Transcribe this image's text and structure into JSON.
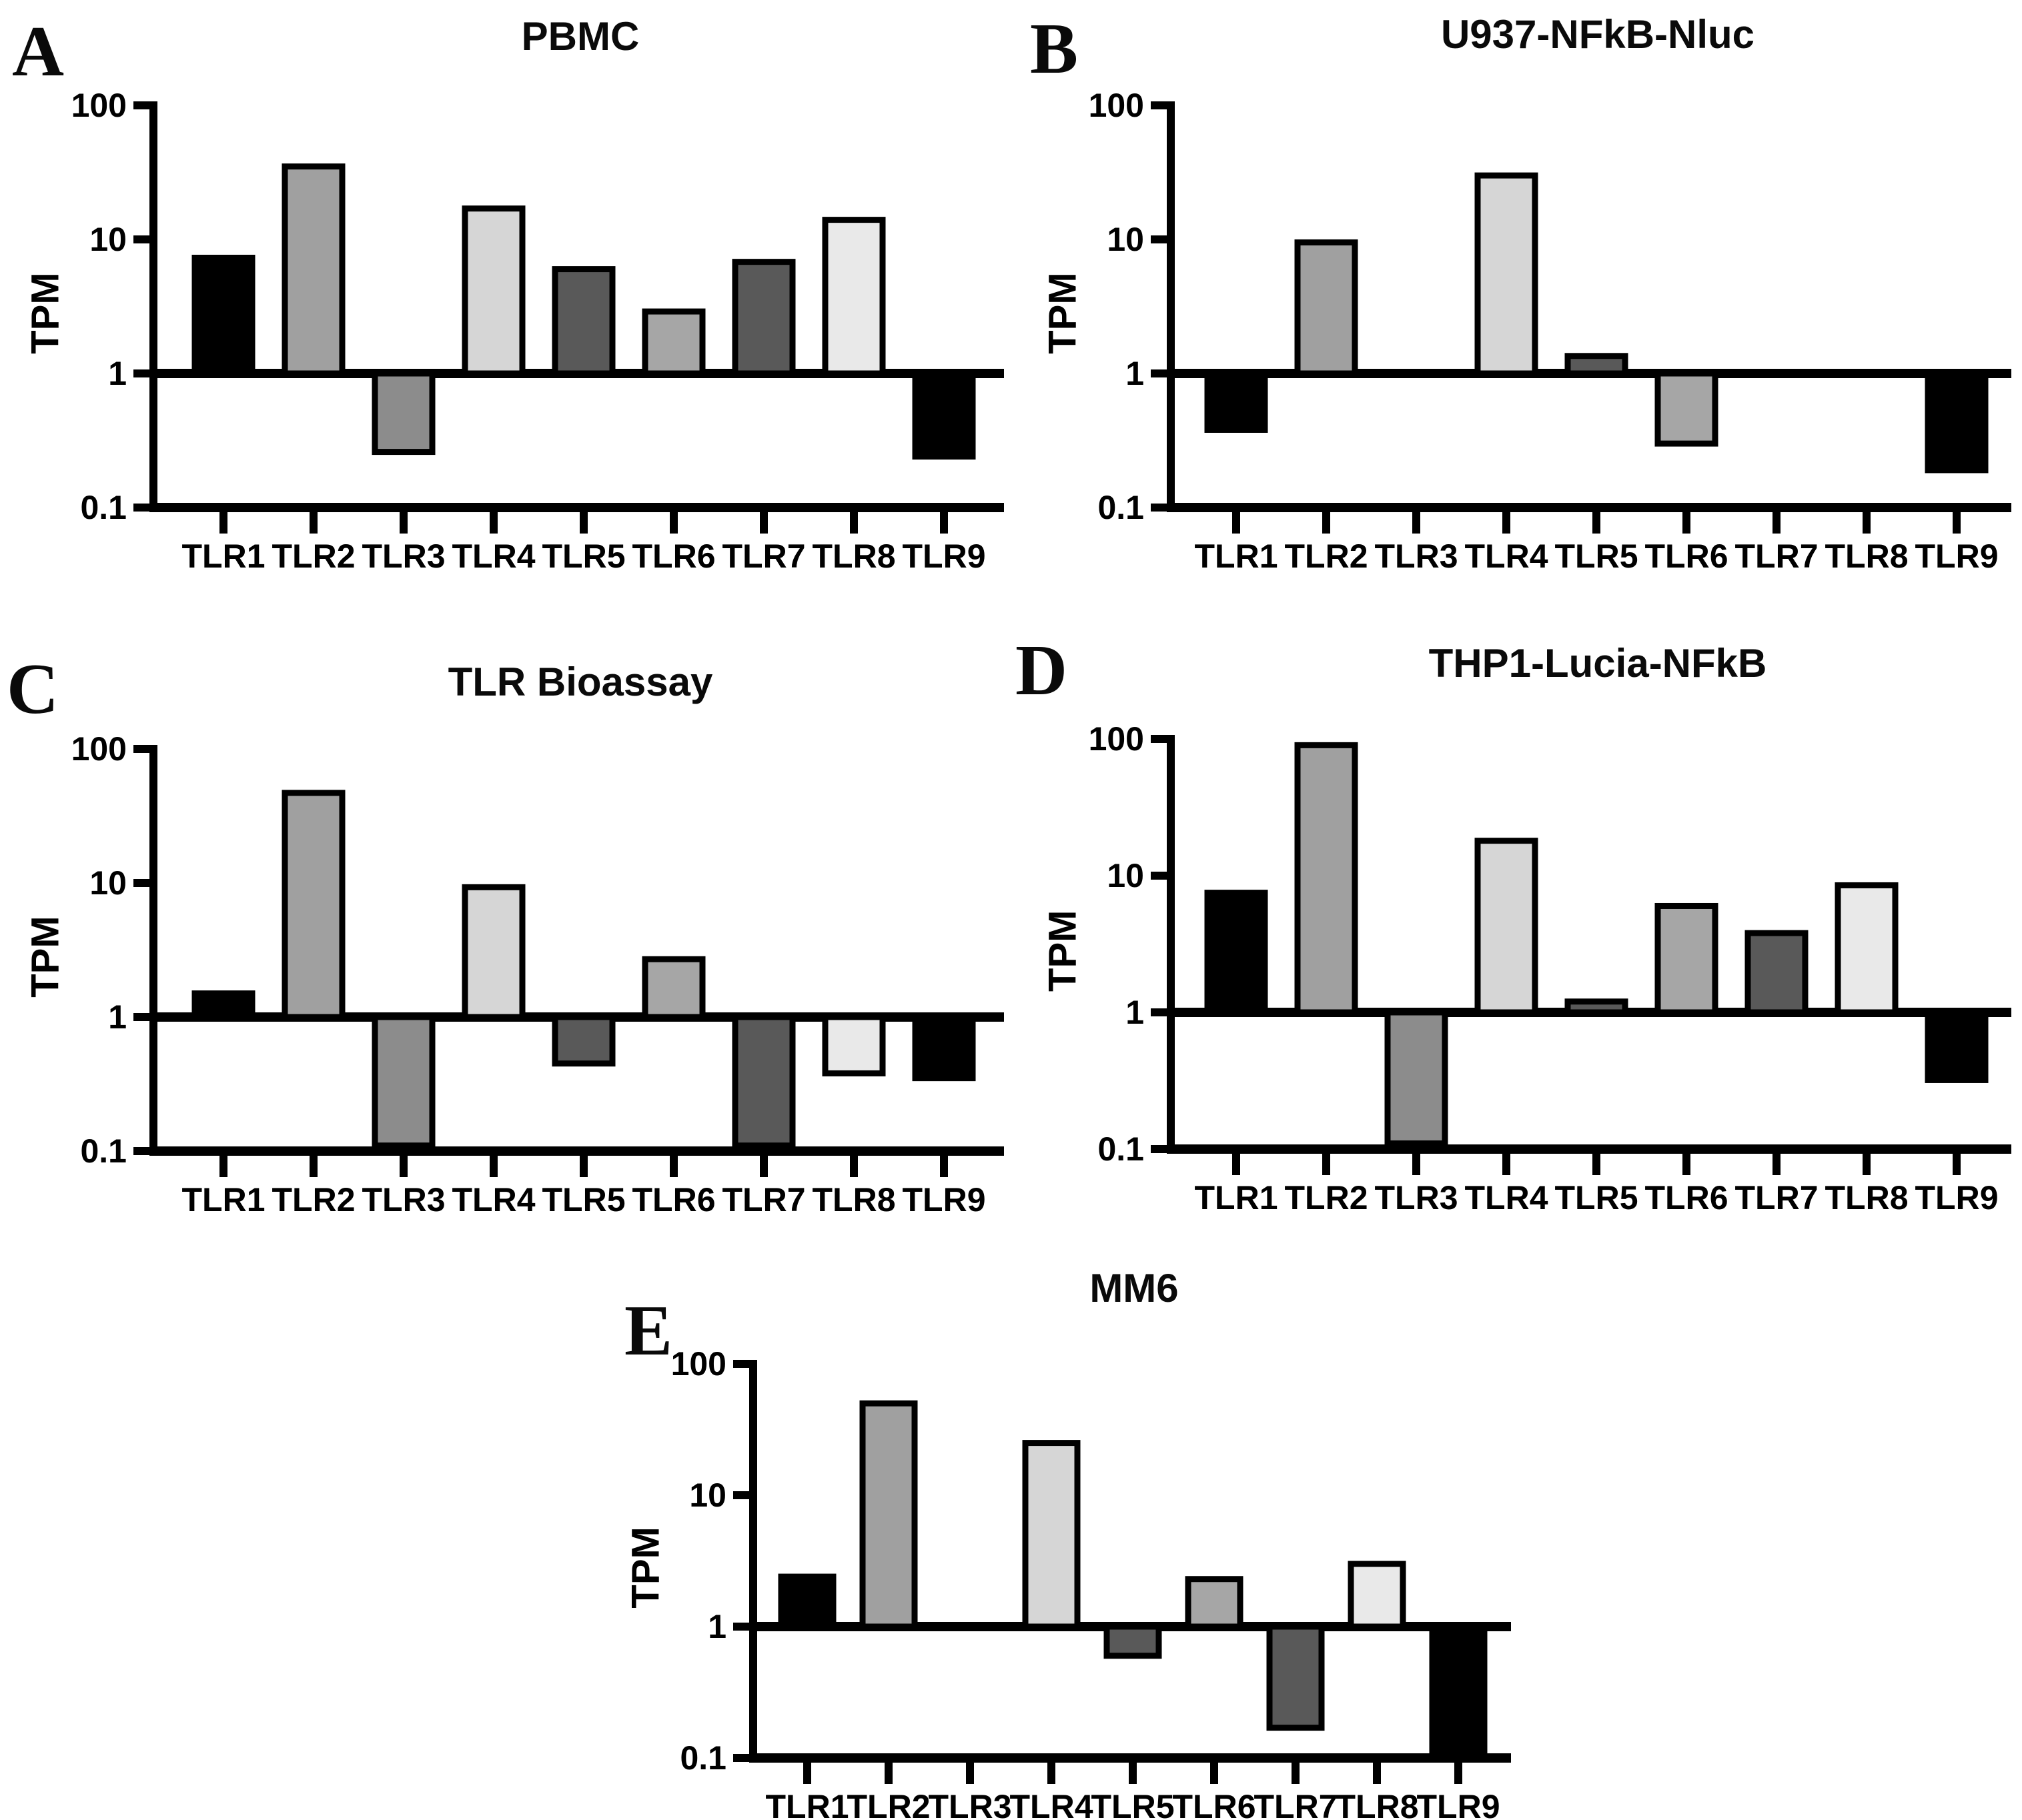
{
  "figure": {
    "ylabel": "TPM",
    "categories": [
      "TLR1",
      "TLR2",
      "TLR3",
      "TLR4",
      "TLR5",
      "TLR6",
      "TLR7",
      "TLR8",
      "TLR9"
    ],
    "axis_color": "#000000",
    "background_color": "#ffffff",
    "bar_colors": [
      "#000000",
      "#a0a0a0",
      "#8c8c8c",
      "#d6d6d6",
      "#595959",
      "#a6a6a6",
      "#595959",
      "#e9e9e9",
      "#000000"
    ]
  },
  "chart_data": [
    {
      "type": "bar",
      "panel_letter": "A",
      "title": "PBMC",
      "ylabel": "TPM",
      "yscale": "log",
      "ylim": [
        0.1,
        100
      ],
      "baseline": 1,
      "yticks": [
        "100",
        "10",
        "1",
        "0.1"
      ],
      "legend": "none",
      "grid": false,
      "categories": [
        "TLR1",
        "TLR2",
        "TLR3",
        "TLR4",
        "TLR5",
        "TLR6",
        "TLR7",
        "TLR8",
        "TLR9"
      ],
      "values": [
        7.3,
        35,
        0.26,
        17,
        6.0,
        2.9,
        6.8,
        14,
        0.24
      ],
      "bar_colors": [
        "#000000",
        "#a0a0a0",
        "#8c8c8c",
        "#d6d6d6",
        "#595959",
        "#a6a6a6",
        "#595959",
        "#e9e9e9",
        "#000000"
      ]
    },
    {
      "type": "bar",
      "panel_letter": "B",
      "title": "U937-NFkB-Nluc",
      "ylabel": "TPM",
      "yscale": "log",
      "ylim": [
        0.1,
        100
      ],
      "baseline": 1,
      "yticks": [
        "100",
        "10",
        "1",
        "0.1"
      ],
      "legend": "none",
      "grid": false,
      "categories": [
        "TLR1",
        "TLR2",
        "TLR3",
        "TLR4",
        "TLR5",
        "TLR6",
        "TLR7",
        "TLR8",
        "TLR9"
      ],
      "values": [
        0.38,
        9.5,
        null,
        30,
        1.35,
        0.3,
        null,
        null,
        0.19
      ],
      "bar_colors": [
        "#000000",
        "#a0a0a0",
        "#8c8c8c",
        "#d6d6d6",
        "#595959",
        "#a6a6a6",
        "#595959",
        "#e9e9e9",
        "#000000"
      ]
    },
    {
      "type": "bar",
      "panel_letter": "C",
      "title": "TLR Bioassay",
      "ylabel": "TPM",
      "yscale": "log",
      "ylim": [
        0.1,
        100
      ],
      "baseline": 1,
      "yticks": [
        "100",
        "10",
        "1",
        "0.1"
      ],
      "legend": "none",
      "grid": false,
      "categories": [
        "TLR1",
        "TLR2",
        "TLR3",
        "TLR4",
        "TLR5",
        "TLR6",
        "TLR7",
        "TLR8",
        "TLR9"
      ],
      "values": [
        1.5,
        47,
        0.11,
        9.3,
        0.45,
        2.7,
        0.11,
        0.38,
        0.35
      ],
      "bar_colors": [
        "#000000",
        "#a0a0a0",
        "#8c8c8c",
        "#d6d6d6",
        "#595959",
        "#a6a6a6",
        "#595959",
        "#e9e9e9",
        "#000000"
      ]
    },
    {
      "type": "bar",
      "panel_letter": "D",
      "title": "THP1-Lucia-NFkB",
      "ylabel": "TPM",
      "yscale": "log",
      "ylim": [
        0.1,
        100
      ],
      "baseline": 1,
      "yticks": [
        "100",
        "10",
        "1",
        "0.1"
      ],
      "legend": "none",
      "grid": false,
      "categories": [
        "TLR1",
        "TLR2",
        "TLR3",
        "TLR4",
        "TLR5",
        "TLR6",
        "TLR7",
        "TLR8",
        "TLR9"
      ],
      "values": [
        7.5,
        90,
        0.11,
        18,
        1.2,
        6.0,
        3.8,
        8.5,
        0.32
      ],
      "bar_colors": [
        "#000000",
        "#a0a0a0",
        "#8c8c8c",
        "#d6d6d6",
        "#595959",
        "#a6a6a6",
        "#595959",
        "#e9e9e9",
        "#000000"
      ]
    },
    {
      "type": "bar",
      "panel_letter": "E",
      "title": "MM6",
      "ylabel": "TPM",
      "yscale": "log",
      "ylim": [
        0.1,
        100
      ],
      "baseline": 1,
      "yticks": [
        "100",
        "10",
        "1",
        "0.1"
      ],
      "legend": "none",
      "grid": false,
      "categories": [
        "TLR1",
        "TLR2",
        "TLR3",
        "TLR4",
        "TLR5",
        "TLR6",
        "TLR7",
        "TLR8",
        "TLR9"
      ],
      "values": [
        2.4,
        50,
        null,
        25,
        0.6,
        2.3,
        0.17,
        3.0,
        0.1
      ],
      "bar_colors": [
        "#000000",
        "#a0a0a0",
        "#8c8c8c",
        "#d6d6d6",
        "#595959",
        "#a6a6a6",
        "#595959",
        "#e9e9e9",
        "#000000"
      ]
    }
  ]
}
